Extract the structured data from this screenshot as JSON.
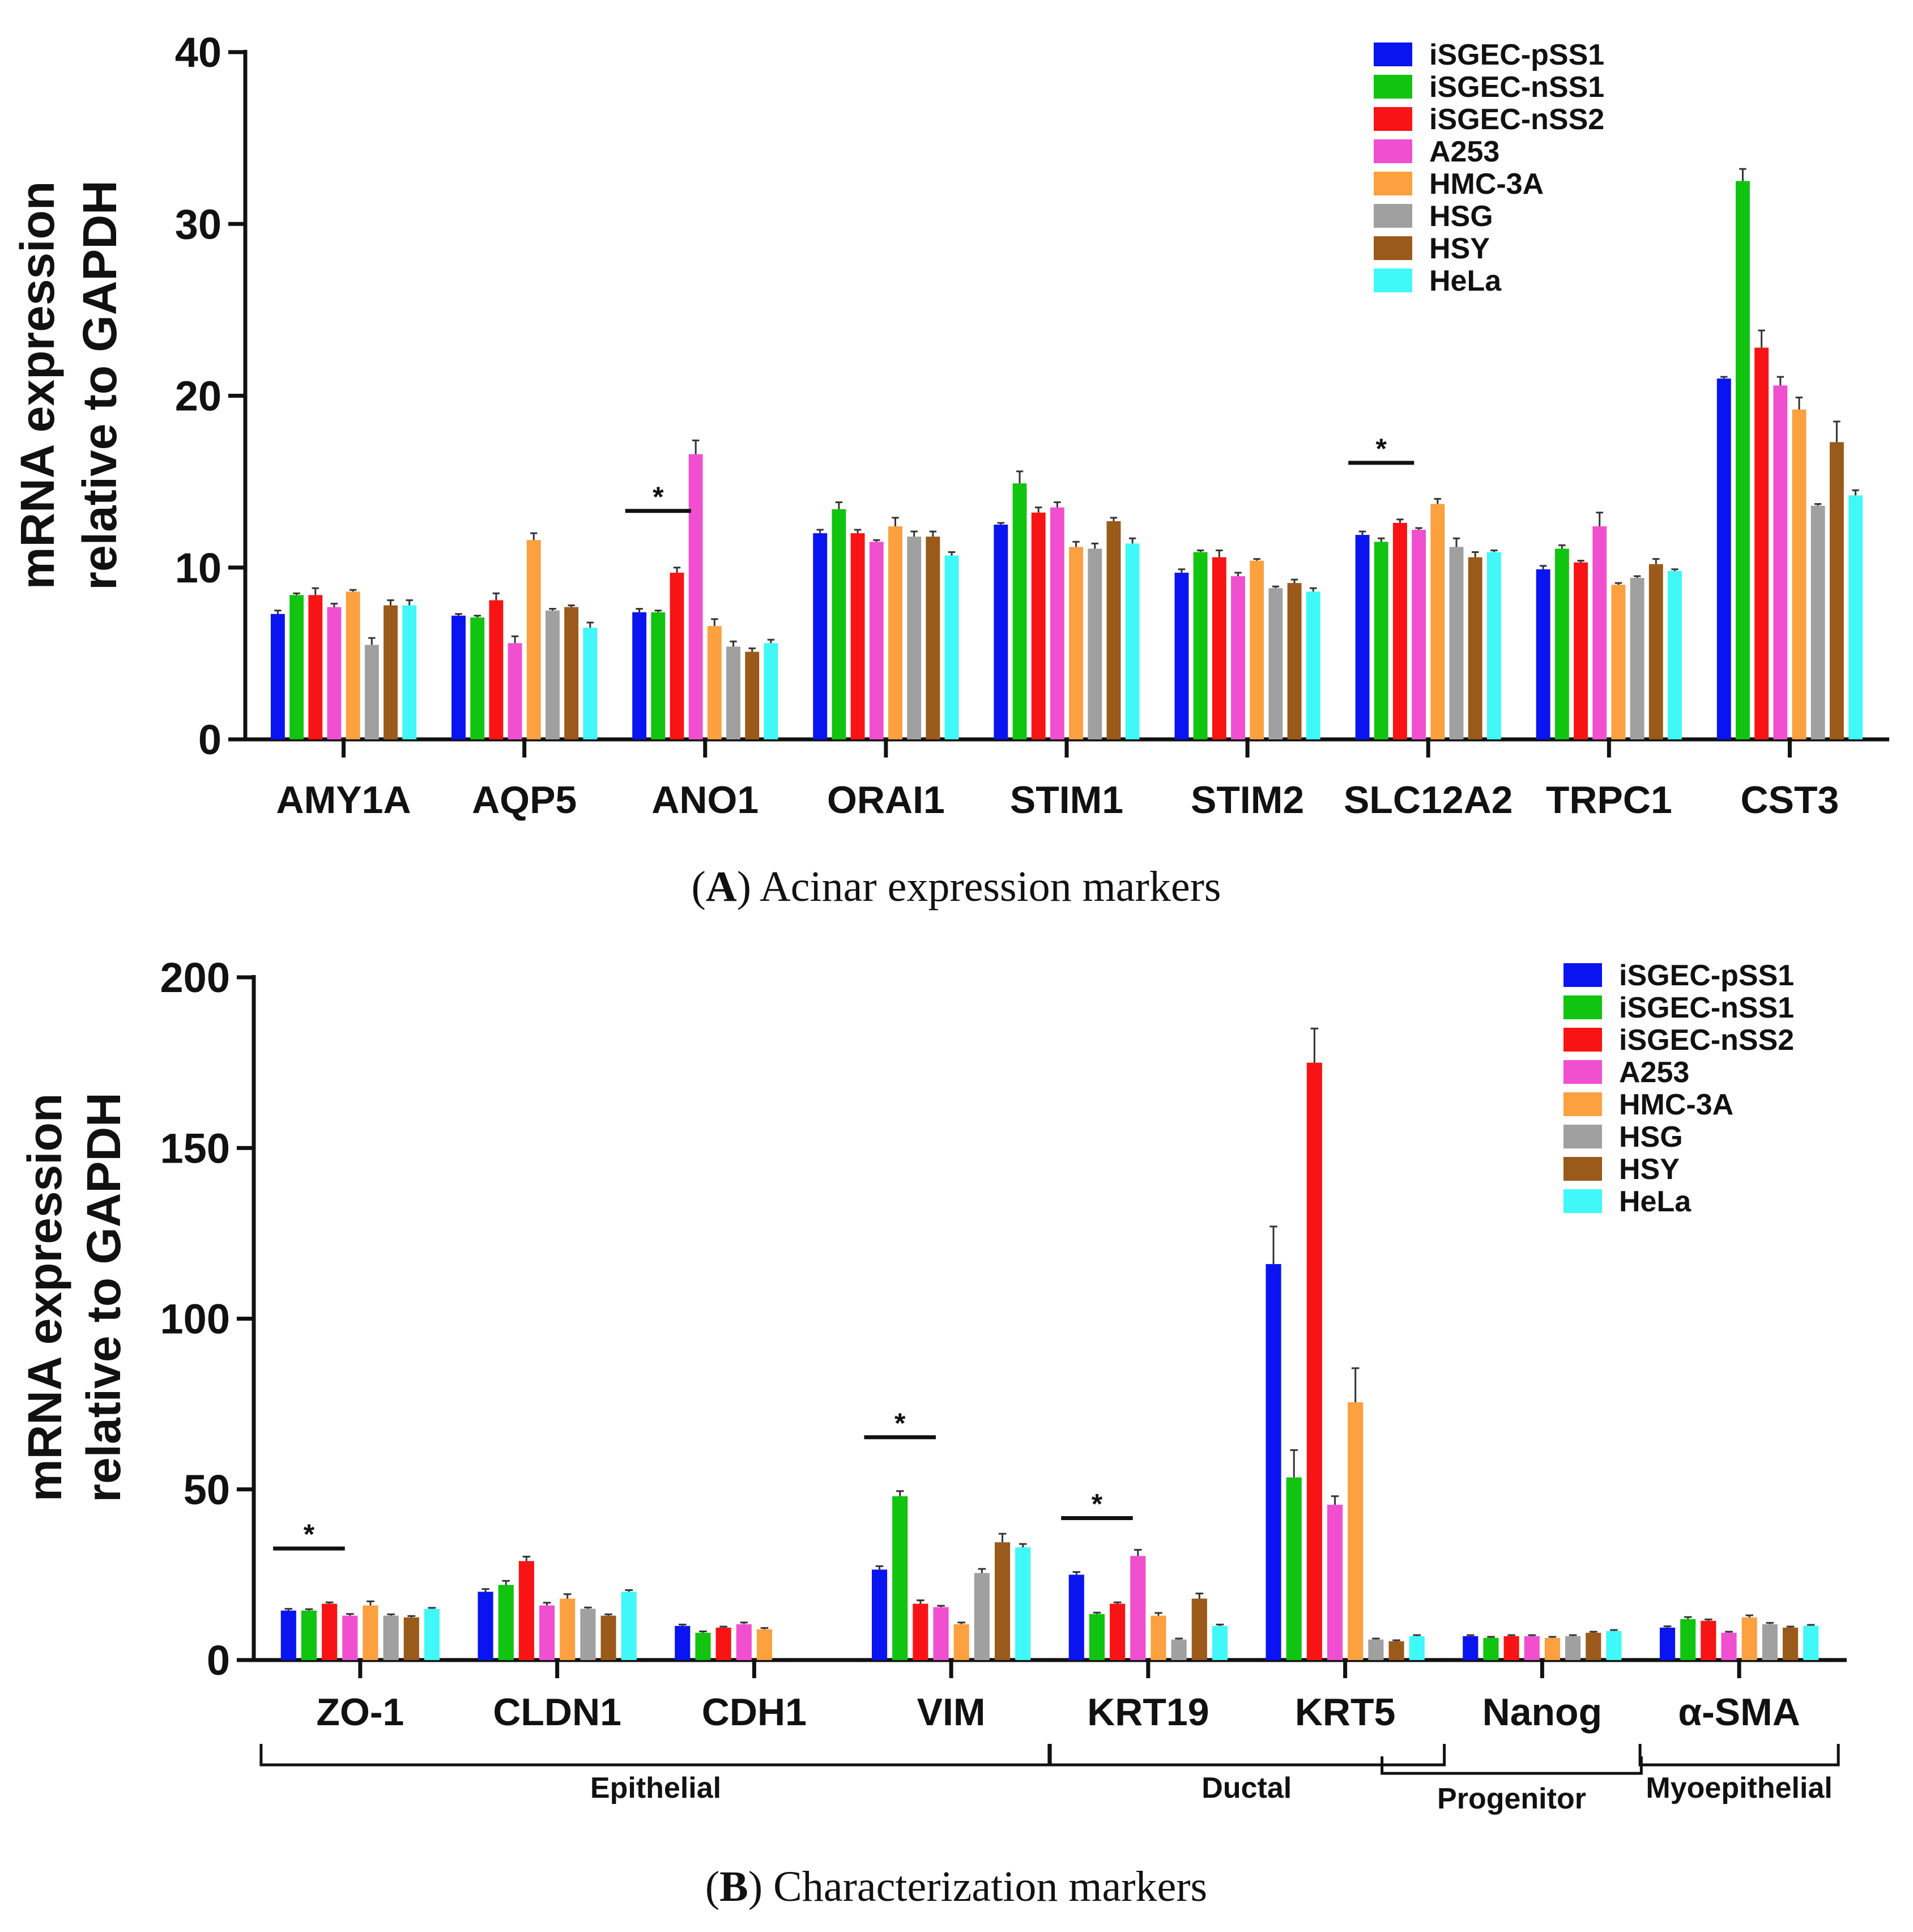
{
  "series_names": [
    "iSGEC-pSS1",
    "iSGEC-nSS1",
    "iSGEC-nSS2",
    "A253",
    "HMC-3A",
    "HSG",
    "HSY",
    "HeLa"
  ],
  "series_colors": [
    "#0a14f0",
    "#10c410",
    "#f81414",
    "#f050d0",
    "#fca040",
    "#a0a0a0",
    "#9a5a1a",
    "#40f8f8"
  ],
  "chart_data": [
    {
      "type": "bar",
      "panel": "A",
      "caption_letter": "A",
      "caption_text": "Acinar expression markers",
      "ylabel_line1": "mRNA expression",
      "ylabel_line2": "relative to GAPDH",
      "ylim": [
        0,
        40
      ],
      "yticks": [
        "0",
        "10",
        "20",
        "30",
        "40"
      ],
      "legend_position": "top-right",
      "categories": [
        "AMY1A",
        "AQP5",
        "ANO1",
        "ORAI1",
        "STIM1",
        "STIM2",
        "SLC12A2",
        "TRPC1",
        "CST3"
      ],
      "series": [
        {
          "name": "iSGEC-pSS1",
          "values": [
            7.3,
            7.2,
            7.4,
            12.0,
            12.5,
            9.7,
            11.9,
            9.9,
            21.0
          ],
          "errors": [
            0.2,
            0.1,
            0.2,
            0.2,
            0.1,
            0.2,
            0.2,
            0.2,
            0.1
          ]
        },
        {
          "name": "iSGEC-nSS1",
          "values": [
            8.4,
            7.1,
            7.4,
            13.4,
            14.9,
            10.9,
            11.5,
            11.1,
            32.5
          ],
          "errors": [
            0.1,
            0.1,
            0.1,
            0.4,
            0.7,
            0.1,
            0.2,
            0.2,
            0.7
          ]
        },
        {
          "name": "iSGEC-nSS2",
          "values": [
            8.4,
            8.1,
            9.7,
            12.0,
            13.2,
            10.6,
            12.6,
            10.3,
            22.8
          ],
          "errors": [
            0.4,
            0.4,
            0.3,
            0.2,
            0.3,
            0.4,
            0.2,
            0.1,
            1.0
          ]
        },
        {
          "name": "A253",
          "values": [
            7.7,
            5.6,
            16.6,
            11.5,
            13.5,
            9.5,
            12.2,
            12.4,
            20.6
          ],
          "errors": [
            0.2,
            0.4,
            0.8,
            0.1,
            0.3,
            0.2,
            0.1,
            0.8,
            0.5
          ]
        },
        {
          "name": "HMC-3A",
          "values": [
            8.6,
            11.6,
            6.6,
            12.4,
            11.2,
            10.4,
            13.7,
            9.0,
            19.2
          ],
          "errors": [
            0.1,
            0.4,
            0.4,
            0.5,
            0.3,
            0.1,
            0.3,
            0.1,
            0.7
          ]
        },
        {
          "name": "HSG",
          "values": [
            5.5,
            7.5,
            5.4,
            11.8,
            11.1,
            8.8,
            11.2,
            9.4,
            13.6
          ],
          "errors": [
            0.4,
            0.1,
            0.3,
            0.3,
            0.3,
            0.1,
            0.5,
            0.1,
            0.1
          ]
        },
        {
          "name": "HSY",
          "values": [
            7.8,
            7.7,
            5.1,
            11.8,
            12.7,
            9.1,
            10.6,
            10.2,
            17.3
          ],
          "errors": [
            0.3,
            0.1,
            0.2,
            0.3,
            0.2,
            0.2,
            0.3,
            0.3,
            1.2
          ]
        },
        {
          "name": "HeLa",
          "values": [
            7.8,
            6.5,
            5.6,
            10.7,
            11.4,
            8.6,
            10.9,
            9.8,
            14.2
          ],
          "errors": [
            0.3,
            0.3,
            0.2,
            0.2,
            0.3,
            0.2,
            0.1,
            0.1,
            0.3
          ]
        }
      ],
      "significance": [
        {
          "category_index": 2,
          "label": "*",
          "from_series": 0,
          "to_series": 2
        },
        {
          "category_index": 6,
          "label": "*",
          "from_series": 0,
          "to_series": 2
        }
      ],
      "groups": []
    },
    {
      "type": "bar",
      "panel": "B",
      "caption_letter": "B",
      "caption_text": "Characterization markers",
      "ylabel_line1": "mRNA expression",
      "ylabel_line2": "relative to GAPDH",
      "ylim": [
        0,
        200
      ],
      "yticks": [
        "0",
        "50",
        "100",
        "150",
        "200"
      ],
      "legend_position": "top-right",
      "categories": [
        "ZO-1",
        "CLDN1",
        "CDH1",
        "VIM",
        "KRT19",
        "KRT5",
        "Nanog",
        "α-SMA"
      ],
      "series": [
        {
          "name": "iSGEC-pSS1",
          "values": [
            14.5,
            20.0,
            10.0,
            26.5,
            25.0,
            116.0,
            7.0,
            9.5
          ],
          "errors": [
            0.5,
            0.8,
            0.4,
            1.0,
            0.8,
            11.0,
            0.3,
            0.4
          ]
        },
        {
          "name": "iSGEC-nSS1",
          "values": [
            14.5,
            22.0,
            8.0,
            48.0,
            13.5,
            53.5,
            6.5,
            12.0
          ],
          "errors": [
            0.4,
            1.2,
            0.4,
            1.5,
            0.4,
            8.0,
            0.3,
            0.6
          ]
        },
        {
          "name": "iSGEC-nSS2",
          "values": [
            16.5,
            29.0,
            9.5,
            16.5,
            16.5,
            175.0,
            7.0,
            11.5
          ],
          "errors": [
            0.4,
            1.3,
            0.3,
            1.0,
            0.4,
            10.0,
            0.3,
            0.4
          ]
        },
        {
          "name": "A253",
          "values": [
            13.0,
            16.0,
            10.5,
            15.5,
            30.5,
            45.5,
            7.0,
            8.0
          ],
          "errors": [
            0.5,
            0.8,
            0.5,
            0.4,
            1.8,
            2.5,
            0.3,
            0.3
          ]
        },
        {
          "name": "HMC-3A",
          "values": [
            16.0,
            18.0,
            9.0,
            10.5,
            13.0,
            75.5,
            6.5,
            12.5
          ],
          "errors": [
            1.2,
            1.3,
            0.4,
            0.5,
            0.8,
            10.0,
            0.3,
            0.6
          ]
        },
        {
          "name": "HSG",
          "values": [
            13.0,
            15.0,
            null,
            25.5,
            6.0,
            6.0,
            7.0,
            10.5
          ],
          "errors": [
            0.4,
            0.4,
            null,
            1.2,
            0.3,
            0.3,
            0.3,
            0.4
          ]
        },
        {
          "name": "HSY",
          "values": [
            12.5,
            13.0,
            null,
            34.5,
            18.0,
            5.5,
            8.0,
            9.5
          ],
          "errors": [
            0.4,
            0.4,
            null,
            2.5,
            1.5,
            0.3,
            0.3,
            0.3
          ]
        },
        {
          "name": "HeLa",
          "values": [
            15.0,
            20.0,
            null,
            33.0,
            10.0,
            7.0,
            8.5,
            10.0
          ],
          "errors": [
            0.3,
            0.5,
            null,
            1.0,
            0.4,
            0.3,
            0.3,
            0.3
          ]
        }
      ],
      "significance": [
        {
          "category_index": 0,
          "label": "*",
          "from_series": 0,
          "to_series": 2
        },
        {
          "category_index": 3,
          "label": "*",
          "from_series": 0,
          "to_series": 2
        },
        {
          "category_index": 4,
          "label": "*",
          "from_series": 0,
          "to_series": 2
        }
      ],
      "groups": [
        {
          "label": "Epithelial",
          "from_category": 0,
          "to_category": 3,
          "level": 0
        },
        {
          "label": "Ductal",
          "from_category": 4,
          "to_category": 5,
          "level": 0
        },
        {
          "label": "Progenitor",
          "from_category": 5,
          "to_category": 6,
          "level": 1
        },
        {
          "label": "Myoepithelial",
          "from_category": 7,
          "to_category": 7,
          "level": 0
        }
      ]
    }
  ]
}
